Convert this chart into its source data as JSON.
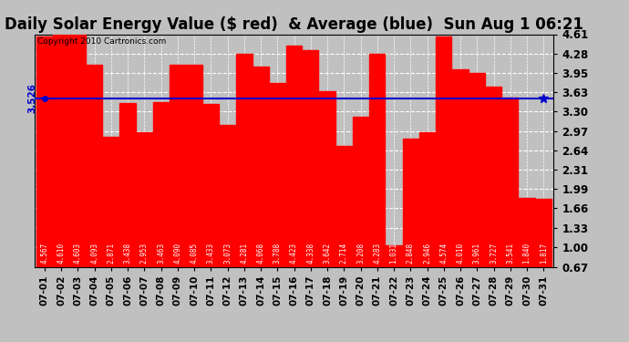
{
  "title": "Daily Solar Energy Value ($ red)  & Average (blue)  Sun Aug 1 06:21",
  "copyright": "Copyright 2010 Cartronics.com",
  "average_value": 3.526,
  "average_label": "3.526",
  "bar_color": "#FF0000",
  "average_line_color": "#0000CC",
  "background_color": "#C0C0C0",
  "plot_bg_color": "#C0C0C0",
  "categories": [
    "07-01",
    "07-02",
    "07-03",
    "07-04",
    "07-05",
    "07-06",
    "07-07",
    "07-08",
    "07-09",
    "07-10",
    "07-11",
    "07-12",
    "07-13",
    "07-14",
    "07-15",
    "07-16",
    "07-17",
    "07-18",
    "07-19",
    "07-20",
    "07-21",
    "07-22",
    "07-23",
    "07-24",
    "07-25",
    "07-26",
    "07-27",
    "07-28",
    "07-29",
    "07-30",
    "07-31"
  ],
  "values": [
    4.567,
    4.61,
    4.603,
    4.093,
    2.871,
    3.438,
    2.953,
    3.463,
    4.09,
    4.085,
    3.433,
    3.073,
    4.281,
    4.068,
    3.788,
    4.423,
    4.338,
    3.642,
    2.714,
    3.208,
    4.283,
    1.031,
    2.848,
    2.946,
    4.574,
    4.01,
    3.961,
    3.727,
    3.541,
    1.84,
    1.817
  ],
  "ylim_min": 0.67,
  "ylim_max": 4.61,
  "yticks": [
    0.67,
    1.0,
    1.33,
    1.66,
    1.99,
    2.31,
    2.64,
    2.97,
    3.3,
    3.63,
    3.95,
    4.28,
    4.61
  ],
  "grid_color": "#FFFFFF",
  "title_fontsize": 12,
  "bar_value_fontsize": 5.5,
  "tick_fontsize": 8.5,
  "copyright_fontsize": 6.5
}
